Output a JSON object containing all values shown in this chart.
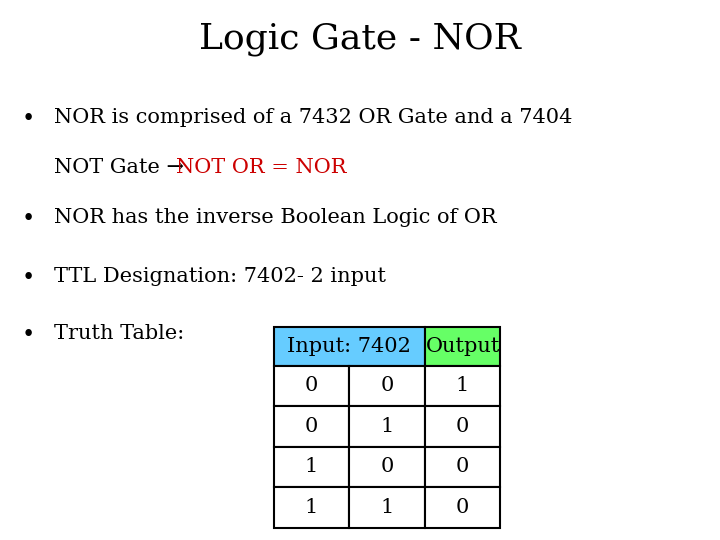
{
  "title": "Logic Gate - NOR",
  "title_fontsize": 26,
  "title_font": "serif",
  "background_color": "#ffffff",
  "bullet2": "NOR has the inverse Boolean Logic of OR",
  "bullet3": "TTL Designation: 7402- 2 input",
  "bullet4": "Truth Table:",
  "table_data": [
    [
      "0",
      "0",
      "1"
    ],
    [
      "0",
      "1",
      "0"
    ],
    [
      "1",
      "0",
      "0"
    ],
    [
      "1",
      "1",
      "0"
    ]
  ],
  "header_input_label": "Input: 7402",
  "header_output_label": "Output",
  "header_input_color": "#66ccff",
  "header_output_color": "#66ff66",
  "bullet_fontsize": 15,
  "table_fontsize": 15,
  "text_color": "#000000",
  "red_color": "#cc0000"
}
